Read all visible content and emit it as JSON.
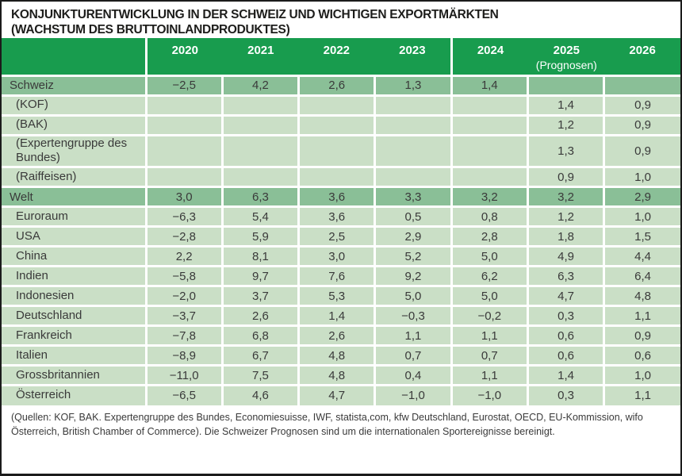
{
  "title": {
    "line1": "KONJUNKTURENTWICKLUNG IN DER SCHWEIZ UND WICHTIGEN EXPORTMÄRKTEN",
    "line2": "(WACHSTUM DES BRUTTOINLANDPRODUKTES)"
  },
  "colors": {
    "header_green": "#189c4e",
    "main_row_green": "#8abf97",
    "sub_row_green": "#cadfc6"
  },
  "table": {
    "columns": [
      "2020",
      "2021",
      "2022",
      "2023",
      "2024",
      "2025",
      "2026"
    ],
    "prognosen_label": "(Prognosen)",
    "rows": [
      {
        "label": "Schweiz",
        "type": "main",
        "values": [
          "−2,5",
          "4,2",
          "2,6",
          "1,3",
          "1,4",
          "",
          ""
        ]
      },
      {
        "label": "(KOF)",
        "type": "sub",
        "values": [
          "",
          "",
          "",
          "",
          "",
          "1,4",
          "0,9"
        ]
      },
      {
        "label": "(BAK)",
        "type": "sub",
        "values": [
          "",
          "",
          "",
          "",
          "",
          "1,2",
          "0,9"
        ]
      },
      {
        "label": "(Expertengruppe des Bundes)",
        "type": "sub",
        "values": [
          "",
          "",
          "",
          "",
          "",
          "1,3",
          "0,9"
        ]
      },
      {
        "label": "(Raiffeisen)",
        "type": "sub",
        "values": [
          "",
          "",
          "",
          "",
          "",
          "0,9",
          "1,0"
        ]
      },
      {
        "label": "Welt",
        "type": "main",
        "values": [
          "3,0",
          "6,3",
          "3,6",
          "3,3",
          "3,2",
          "3,2",
          "2,9"
        ]
      },
      {
        "label": "Euroraum",
        "type": "sub",
        "values": [
          "−6,3",
          "5,4",
          "3,6",
          "0,5",
          "0,8",
          "1,2",
          "1,0"
        ]
      },
      {
        "label": "USA",
        "type": "sub",
        "values": [
          "−2,8",
          "5,9",
          "2,5",
          "2,9",
          "2,8",
          "1,8",
          "1,5"
        ]
      },
      {
        "label": "China",
        "type": "sub",
        "values": [
          "2,2",
          "8,1",
          "3,0",
          "5,2",
          "5,0",
          "4,9",
          "4,4"
        ]
      },
      {
        "label": "Indien",
        "type": "sub",
        "values": [
          "−5,8",
          "9,7",
          "7,6",
          "9,2",
          "6,2",
          "6,3",
          "6,4"
        ]
      },
      {
        "label": "Indonesien",
        "type": "sub",
        "values": [
          "−2,0",
          "3,7",
          "5,3",
          "5,0",
          "5,0",
          "4,7",
          "4,8"
        ]
      },
      {
        "label": "Deutschland",
        "type": "sub",
        "values": [
          "−3,7",
          "2,6",
          "1,4",
          "−0,3",
          "−0,2",
          "0,3",
          "1,1"
        ]
      },
      {
        "label": "Frankreich",
        "type": "sub",
        "values": [
          "−7,8",
          "6,8",
          "2,6",
          "1,1",
          "1,1",
          "0,6",
          "0,9"
        ]
      },
      {
        "label": "Italien",
        "type": "sub",
        "values": [
          "−8,9",
          "6,7",
          "4,8",
          "0,7",
          "0,7",
          "0,6",
          "0,6"
        ]
      },
      {
        "label": "Grossbritannien",
        "type": "sub",
        "values": [
          "−11,0",
          "7,5",
          "4,8",
          "0,4",
          "1,1",
          "1,4",
          "1,0"
        ]
      },
      {
        "label": "Österreich",
        "type": "sub",
        "values": [
          "−6,5",
          "4,6",
          "4,7",
          "−1,0",
          "−1,0",
          "0,3",
          "1,1"
        ]
      }
    ]
  },
  "footer": {
    "text": "(Quellen: KOF, BAK. Expertengruppe des Bundes, Economiesuisse, IWF, statista,com, kfw Deutschland, Eurostat, OECD, EU-Kommission, wifo Österreich, British Chamber of Commerce). Die Schweizer Prognosen sind um die internationalen Sportereignisse bereinigt."
  }
}
